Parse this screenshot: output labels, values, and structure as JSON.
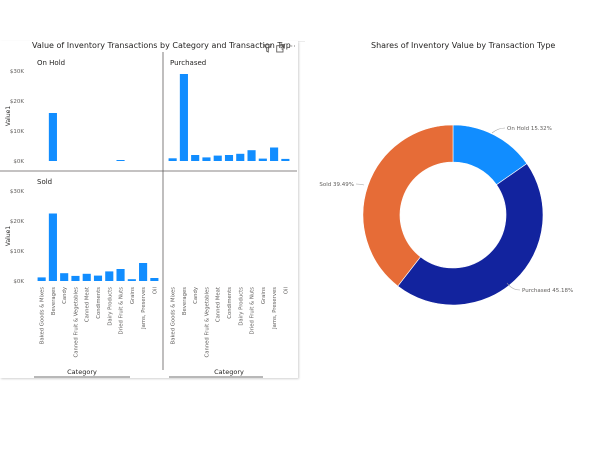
{
  "left_visual": {
    "title": "Value of Inventory Transactions by Category and Transaction Typ",
    "header_icons": [
      "filter-icon",
      "focus-mode-icon",
      "more-options-icon"
    ],
    "more_options_glyph": "···"
  },
  "right_visual": {
    "title": "Shares of Inventory Value by Transaction Type"
  },
  "colors": {
    "bar": "#118dff",
    "on_hold": "#118dff",
    "purchased": "#12239e",
    "sold": "#e66c37",
    "axis_text": "#605e5c",
    "divider": "#605e5c"
  },
  "chart_data": [
    {
      "type": "bar",
      "layout": "small-multiples",
      "xlabel": "Category",
      "ylabel": "Value1",
      "ylim": [
        0,
        30000
      ],
      "yticks": [
        "$0K",
        "$10K",
        "$20K",
        "$30K"
      ],
      "ytick_values": [
        0,
        10000,
        20000,
        30000
      ],
      "categories": [
        "Baked Goods & Mixes",
        "Beverages",
        "Candy",
        "Canned Fruit & Vegetables",
        "Canned Meat",
        "Condiments",
        "Dairy Products",
        "Dried Fruit & Nuts",
        "Grains",
        "Jams, Preserves",
        "Oil"
      ],
      "series": [
        {
          "name": "On Hold",
          "values": [
            0,
            16000,
            0,
            0,
            0,
            0,
            0,
            300,
            0,
            0,
            0
          ]
        },
        {
          "name": "Purchased",
          "values": [
            900,
            29000,
            2000,
            1200,
            1800,
            2000,
            2400,
            3600,
            800,
            4500,
            700
          ]
        },
        {
          "name": "Sold",
          "values": [
            1200,
            22500,
            2600,
            1700,
            2400,
            1800,
            3200,
            4000,
            600,
            6000,
            1000
          ]
        }
      ]
    },
    {
      "type": "pie",
      "variant": "donut",
      "title": "Shares of Inventory Value by Transaction Type",
      "labels": [
        "On Hold",
        "Purchased",
        "Sold"
      ],
      "values": [
        15.32,
        45.18,
        39.49
      ],
      "data_labels": [
        "On Hold 15.32%",
        "Purchased 45.18%",
        "Sold 39.49%"
      ]
    }
  ]
}
